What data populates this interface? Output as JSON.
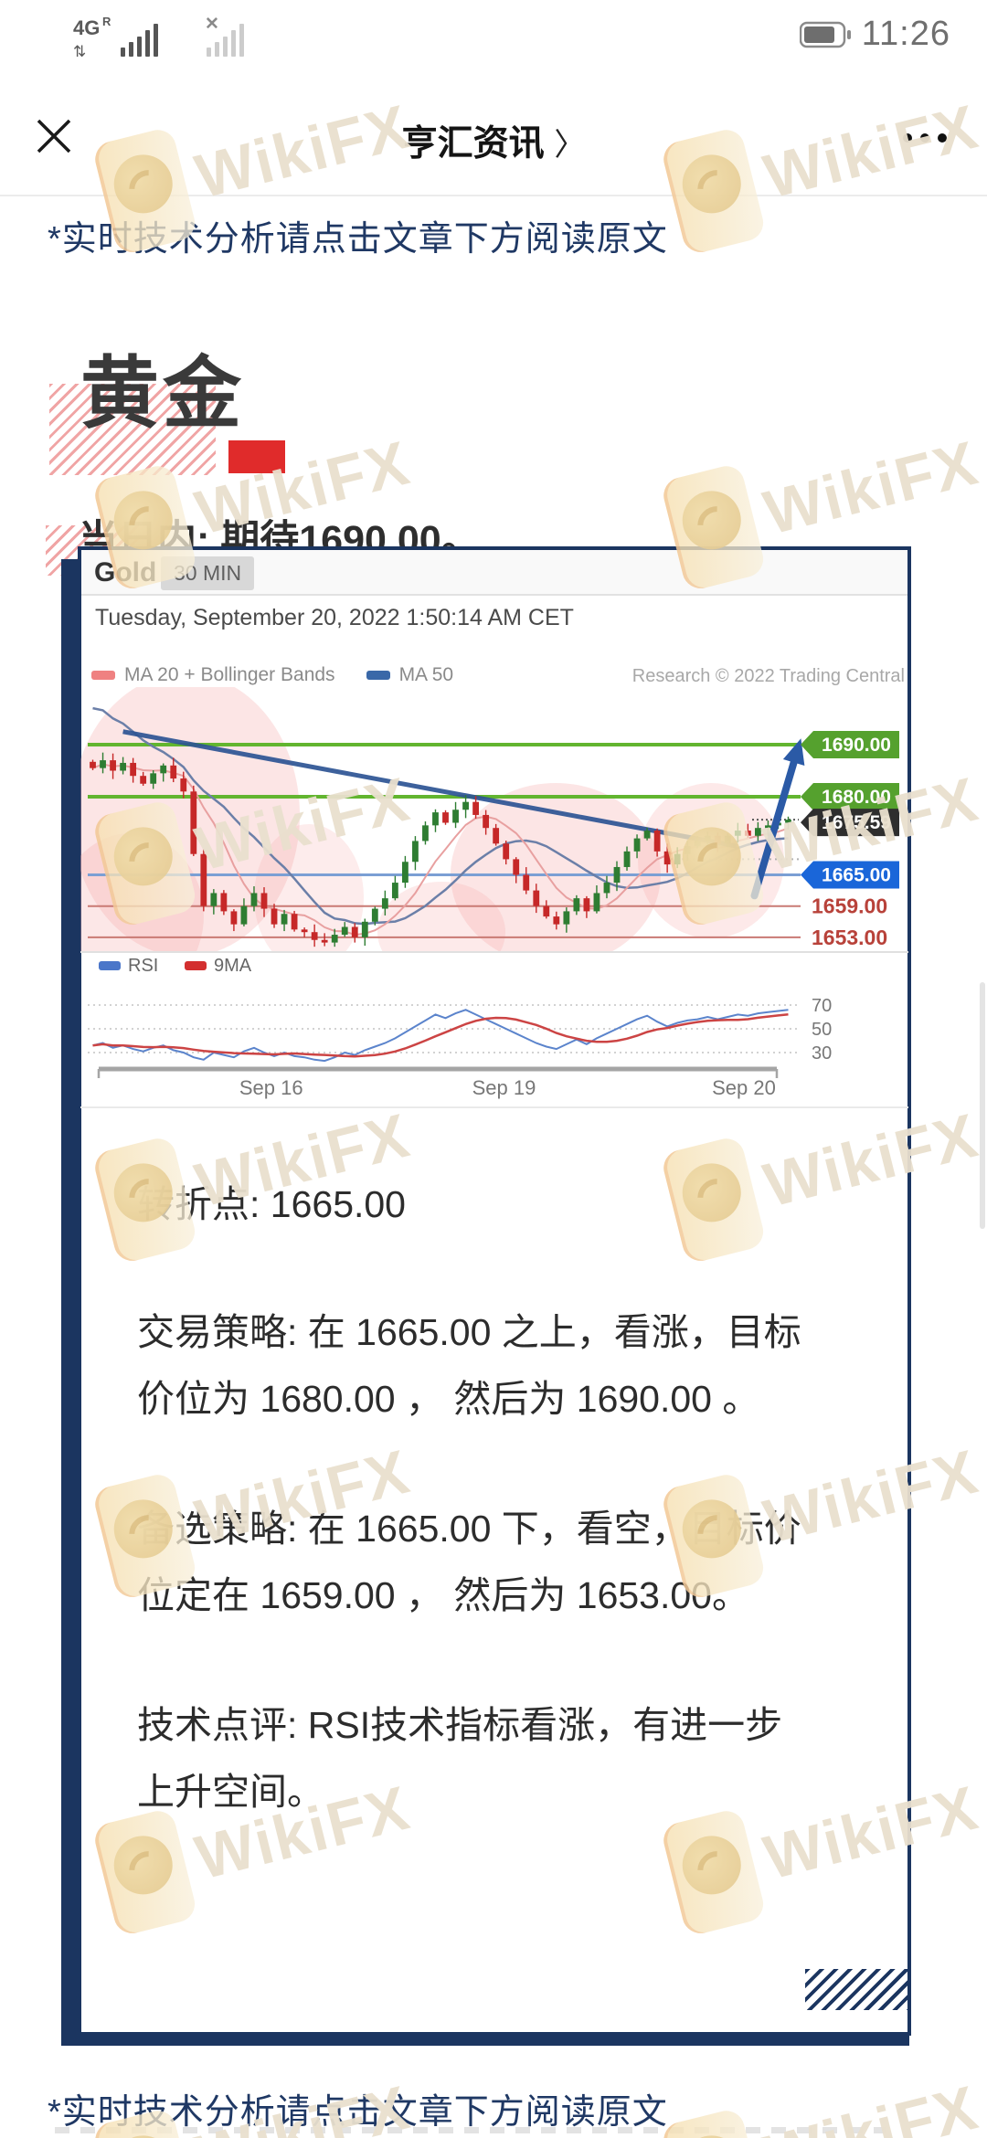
{
  "theme": {
    "navy": "#1b3560",
    "accent_red": "#e02b2b",
    "notice_blue": "#1f3864",
    "watermark_cream": "#f3ddaf"
  },
  "status_bar": {
    "time": "11:26",
    "network_badge": "4G",
    "network_sub": "R",
    "roaming_arrow": "⇅",
    "no_signal_mark": "✕"
  },
  "nav": {
    "close_label": "✕",
    "title": "亨汇资讯",
    "chevron": "〉",
    "more_label": "•••"
  },
  "notice_top": "*实时技术分析请点击文章下方阅读原文",
  "article": {
    "title": "黄金",
    "subtitle": "当日内: 期待1690.00。"
  },
  "chart_data": {
    "type": "candlestick",
    "symbol": "Gold",
    "interval": "30 MIN",
    "timestamp": "Tuesday, September 20, 2022 1:50:14 AM CET",
    "attribution": "Research © 2022 Trading Central",
    "legend_main": [
      {
        "label": "MA 20 + Bollinger Bands",
        "color": "#ef8181"
      },
      {
        "label": "MA 50",
        "color": "#3a68a8"
      }
    ],
    "legend_sub": [
      {
        "label": "RSI",
        "color": "#4a76c9"
      },
      {
        "label": "9MA",
        "color": "#d32f2f"
      }
    ],
    "levels": [
      {
        "label": "1690.00",
        "price": 1690,
        "kind": "target-green",
        "box": "#55a12e",
        "line": "#62b52f"
      },
      {
        "label": "1680.00",
        "price": 1680,
        "kind": "target-green",
        "box": "#55a12e",
        "line": "#62b52f"
      },
      {
        "label": "1675.59",
        "price": 1675.59,
        "kind": "last-price",
        "box": "#2e2e2e",
        "line": "#555555"
      },
      {
        "label": "1665.00",
        "price": 1665,
        "kind": "pivot-blue",
        "box": "#1a66d9",
        "line": "#7b9fd4"
      },
      {
        "label": "1659.00",
        "price": 1659,
        "kind": "support-red",
        "box": "#b8423a",
        "line": "#c97a74"
      },
      {
        "label": "1653.00",
        "price": 1653,
        "kind": "support-red",
        "box": "#b8423a",
        "line": "#c97a74"
      }
    ],
    "x_ticks": [
      "Sep 16",
      "Sep 19",
      "Sep 20"
    ],
    "rsi_ticks": [
      "70",
      "50",
      "30"
    ],
    "y_domain": [
      1650.5,
      1701
    ],
    "closes": [
      1685.5,
      1687,
      1685,
      1686.5,
      1684,
      1682.5,
      1684.5,
      1686,
      1683.5,
      1681,
      1669,
      1659,
      1661.5,
      1658,
      1655.5,
      1659,
      1661.5,
      1658.5,
      1655.5,
      1657.5,
      1654.5,
      1654,
      1652.5,
      1652,
      1653.5,
      1655,
      1653,
      1656,
      1658.5,
      1660.5,
      1663.5,
      1667.5,
      1671.5,
      1674.5,
      1677,
      1675,
      1677.5,
      1679,
      1676.5,
      1674,
      1671,
      1668,
      1665,
      1662,
      1659,
      1657,
      1655.5,
      1658,
      1660.5,
      1658,
      1661.5,
      1663.5,
      1666.5,
      1669.5,
      1672,
      1673.5,
      1669.5,
      1667,
      1669,
      1670.5,
      1671.5,
      1672.5,
      1671,
      1672.5,
      1673.5,
      1672.5,
      1674,
      1674.5,
      1675,
      1675.6
    ],
    "rsi": [
      36,
      38,
      34,
      36,
      33,
      31,
      34,
      36,
      32,
      30,
      26,
      24,
      30,
      28,
      26,
      31,
      34,
      30,
      27,
      30,
      27,
      26,
      24,
      23,
      26,
      30,
      28,
      32,
      35,
      38,
      42,
      47,
      52,
      57,
      62,
      59,
      63,
      66,
      62,
      58,
      54,
      50,
      46,
      42,
      38,
      35,
      33,
      37,
      41,
      37,
      42,
      46,
      50,
      54,
      58,
      61,
      56,
      52,
      55,
      57,
      58,
      60,
      58,
      60,
      62,
      61,
      63,
      64,
      65,
      66
    ],
    "trendline": {
      "from": {
        "xf": 0.05,
        "price": 1692.5
      },
      "to": {
        "xf": 0.92,
        "price": 1670.5
      }
    },
    "arrow": {
      "from": {
        "xf": 0.945,
        "price": 1661
      },
      "to": {
        "xf": 1.005,
        "price": 1688.5
      }
    }
  },
  "analysis": {
    "pivot": "转折点: 1665.00",
    "strategy": "交易策略: 在 1665.00 之上，看涨，目标\n价位为 1680.00 ， 然后为 1690.00 。",
    "alt_strategy": "备选策略: 在 1665.00 下，看空，目标价\n位定在 1659.00 ， 然后为 1653.00。",
    "comment": "技术点评: RSI技术指标看涨，有进一步\n上升空间。"
  },
  "notice_bottom": "*实时技术分析请点击文章下方阅读原文",
  "watermark": {
    "text": "WikiFX"
  }
}
